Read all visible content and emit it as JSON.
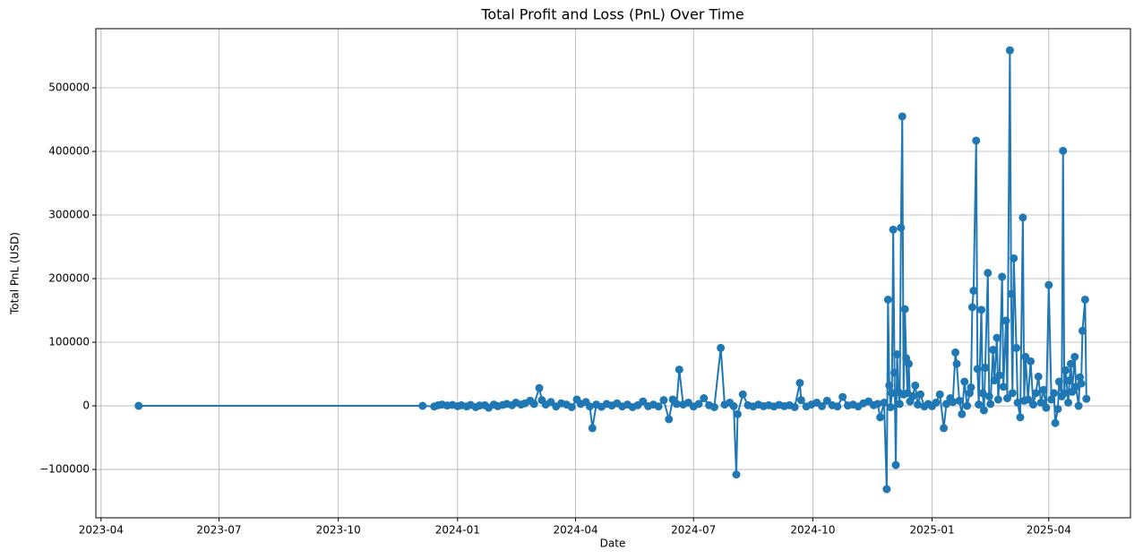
{
  "chart_data": {
    "type": "line",
    "title": "Total Profit and Loss (PnL) Over Time",
    "xlabel": "Date",
    "ylabel": "Total PnL (USD)",
    "x": [
      "2023-04-30",
      "2023-12-05",
      "2023-12-14",
      "2023-12-17",
      "2023-12-20",
      "2023-12-24",
      "2023-12-28",
      "2024-01-01",
      "2024-01-04",
      "2024-01-08",
      "2024-01-11",
      "2024-01-15",
      "2024-01-18",
      "2024-01-22",
      "2024-01-25",
      "2024-01-29",
      "2024-02-01",
      "2024-02-05",
      "2024-02-08",
      "2024-02-12",
      "2024-02-15",
      "2024-02-19",
      "2024-02-22",
      "2024-02-26",
      "2024-02-29",
      "2024-03-04",
      "2024-03-06",
      "2024-03-09",
      "2024-03-13",
      "2024-03-17",
      "2024-03-21",
      "2024-03-25",
      "2024-03-29",
      "2024-04-02",
      "2024-04-05",
      "2024-04-09",
      "2024-04-12",
      "2024-04-14",
      "2024-04-17",
      "2024-04-21",
      "2024-04-25",
      "2024-04-29",
      "2024-05-03",
      "2024-05-07",
      "2024-05-11",
      "2024-05-15",
      "2024-05-19",
      "2024-05-23",
      "2024-05-27",
      "2024-05-31",
      "2024-06-04",
      "2024-06-08",
      "2024-06-12",
      "2024-06-15",
      "2024-06-18",
      "2024-06-20",
      "2024-06-23",
      "2024-06-27",
      "2024-07-01",
      "2024-07-05",
      "2024-07-09",
      "2024-07-13",
      "2024-07-17",
      "2024-07-22",
      "2024-07-25",
      "2024-07-29",
      "2024-08-01",
      "2024-08-03",
      "2024-08-04",
      "2024-08-08",
      "2024-08-12",
      "2024-08-16",
      "2024-08-20",
      "2024-08-24",
      "2024-08-28",
      "2024-09-01",
      "2024-09-05",
      "2024-09-09",
      "2024-09-13",
      "2024-09-17",
      "2024-09-21",
      "2024-09-22",
      "2024-09-26",
      "2024-09-30",
      "2024-10-04",
      "2024-10-08",
      "2024-10-12",
      "2024-10-16",
      "2024-10-20",
      "2024-10-24",
      "2024-10-28",
      "2024-11-01",
      "2024-11-05",
      "2024-11-09",
      "2024-11-13",
      "2024-11-17",
      "2024-11-20",
      "2024-11-22",
      "2024-11-25",
      "2024-11-27",
      "2024-11-28",
      "2024-11-29",
      "2024-11-30",
      "2024-12-01",
      "2024-12-02",
      "2024-12-03",
      "2024-12-04",
      "2024-12-05",
      "2024-12-06",
      "2024-12-07",
      "2024-12-08",
      "2024-12-09",
      "2024-12-10",
      "2024-12-11",
      "2024-12-12",
      "2024-12-13",
      "2024-12-14",
      "2024-12-15",
      "2024-12-17",
      "2024-12-19",
      "2024-12-21",
      "2024-12-23",
      "2024-12-26",
      "2024-12-29",
      "2025-01-01",
      "2025-01-04",
      "2025-01-07",
      "2025-01-10",
      "2025-01-12",
      "2025-01-15",
      "2025-01-17",
      "2025-01-19",
      "2025-01-20",
      "2025-01-22",
      "2025-01-24",
      "2025-01-26",
      "2025-01-28",
      "2025-01-30",
      "2025-01-31",
      "2025-02-01",
      "2025-02-02",
      "2025-02-04",
      "2025-02-05",
      "2025-02-06",
      "2025-02-08",
      "2025-02-09",
      "2025-02-10",
      "2025-02-11",
      "2025-02-13",
      "2025-02-14",
      "2025-02-15",
      "2025-02-17",
      "2025-02-18",
      "2025-02-20",
      "2025-02-21",
      "2025-02-22",
      "2025-02-24",
      "2025-02-25",
      "2025-02-27",
      "2025-02-28",
      "2025-03-02",
      "2025-03-03",
      "2025-03-04",
      "2025-03-05",
      "2025-03-07",
      "2025-03-08",
      "2025-03-10",
      "2025-03-12",
      "2025-03-13",
      "2025-03-14",
      "2025-03-16",
      "2025-03-18",
      "2025-03-20",
      "2025-03-22",
      "2025-03-24",
      "2025-03-26",
      "2025-03-28",
      "2025-03-30",
      "2025-04-01",
      "2025-04-03",
      "2025-04-05",
      "2025-04-06",
      "2025-04-08",
      "2025-04-09",
      "2025-04-11",
      "2025-04-12",
      "2025-04-13",
      "2025-04-14",
      "2025-04-16",
      "2025-04-17",
      "2025-04-18",
      "2025-04-19",
      "2025-04-21",
      "2025-04-22",
      "2025-04-24",
      "2025-04-25",
      "2025-04-26",
      "2025-04-27",
      "2025-04-29",
      "2025-04-30"
    ],
    "values": [
      0,
      0,
      -1000,
      1000,
      2000,
      500,
      1500,
      -500,
      1000,
      -1000,
      1500,
      -2000,
      500,
      1000,
      -3000,
      2000,
      -500,
      1500,
      3000,
      1000,
      5000,
      2000,
      4000,
      8000,
      3000,
      28000,
      9000,
      2000,
      6000,
      -1000,
      4000,
      2000,
      -2000,
      10000,
      3000,
      6000,
      -1000,
      -35000,
      2000,
      -1500,
      3000,
      500,
      4000,
      -1000,
      2000,
      -2000,
      1000,
      7000,
      -500,
      2000,
      -1000,
      9000,
      -21000,
      10000,
      3000,
      57000,
      2000,
      5000,
      -1000,
      3000,
      12000,
      1000,
      -2000,
      91000,
      2000,
      5000,
      -500,
      -108000,
      -13000,
      18000,
      1000,
      -1000,
      2000,
      -500,
      1000,
      -1000,
      1500,
      -500,
      1000,
      -2000,
      36000,
      9000,
      -1000,
      2000,
      5000,
      -500,
      8000,
      1000,
      -1000,
      14000,
      500,
      2000,
      -1000,
      4000,
      7000,
      1000,
      3000,
      -18000,
      5000,
      -131000,
      167000,
      32000,
      -2000,
      20000,
      277000,
      52000,
      -93000,
      81000,
      22000,
      3000,
      280000,
      455000,
      18000,
      152000,
      75000,
      20000,
      66000,
      7000,
      15000,
      32000,
      2000,
      18000,
      -1000,
      3000,
      -500,
      5000,
      18000,
      -35000,
      3000,
      12000,
      6000,
      84000,
      66000,
      8000,
      -13000,
      38000,
      0,
      20000,
      29000,
      155000,
      181000,
      417000,
      58000,
      2000,
      151000,
      20000,
      -7000,
      60000,
      209000,
      15000,
      3000,
      88000,
      40000,
      107000,
      10000,
      48000,
      203000,
      30000,
      134000,
      12000,
      559000,
      176000,
      20000,
      232000,
      91000,
      5000,
      -18000,
      296000,
      8000,
      77000,
      10000,
      70000,
      2000,
      20000,
      46000,
      5000,
      25000,
      -3000,
      190000,
      10000,
      20000,
      -27000,
      -5000,
      38000,
      15000,
      401000,
      20000,
      56000,
      5000,
      40000,
      66000,
      22000,
      77000,
      30000,
      0,
      45000,
      35000,
      118000,
      167000,
      11000
    ],
    "color": "#1f77b4",
    "xlim": [
      "2023-03-28",
      "2025-06-03"
    ],
    "xticks": [
      "2023-04",
      "2023-07",
      "2023-10",
      "2024-01",
      "2024-04",
      "2024-07",
      "2024-10",
      "2025-01",
      "2025-04"
    ],
    "ylim": [
      -176000,
      593000
    ],
    "yticks": [
      {
        "value": -100000,
        "label": "−100000"
      },
      0,
      100000,
      200000,
      300000,
      400000,
      500000
    ],
    "grid": true
  }
}
